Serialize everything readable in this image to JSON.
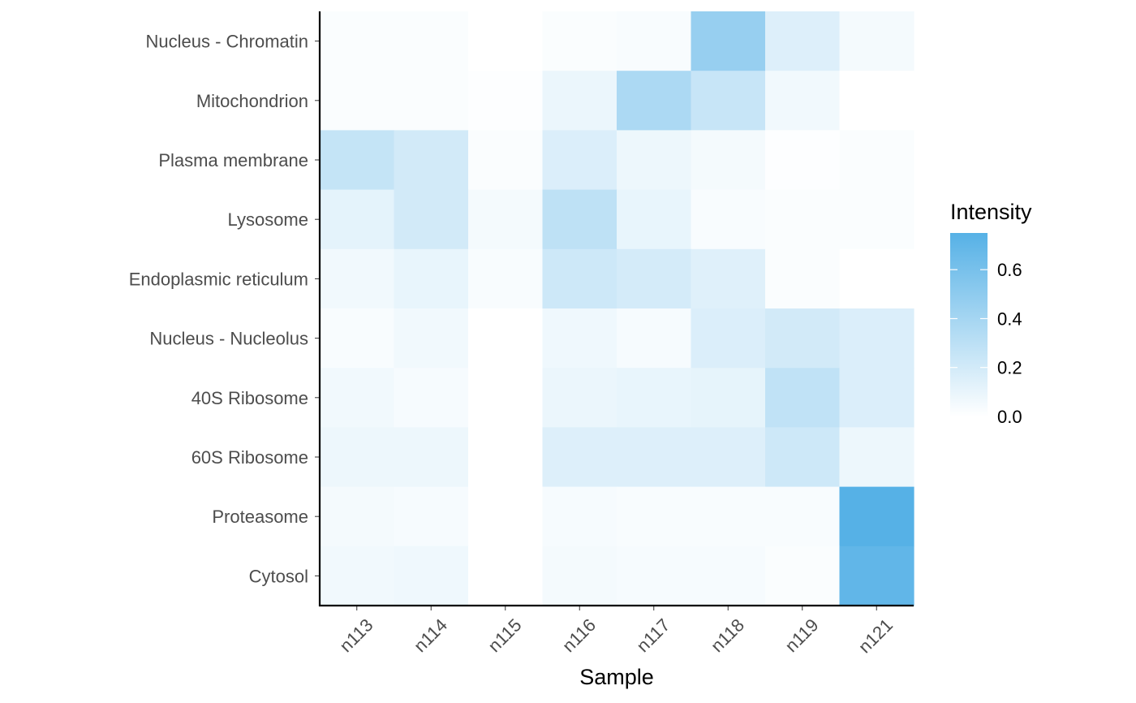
{
  "chart_data": {
    "type": "heatmap",
    "title": "",
    "xlabel": "Sample",
    "ylabel": "",
    "x_categories": [
      "n113",
      "n114",
      "n115",
      "n116",
      "n117",
      "n118",
      "n119",
      "n121"
    ],
    "y_categories": [
      "Nucleus - Chromatin",
      "Mitochondrion",
      "Plasma membrane",
      "Lysosome",
      "Endoplasmic reticulum",
      "Nucleus - Nucleolus",
      "40S Ribosome",
      "60S Ribosome",
      "Proteasome",
      "Cytosol"
    ],
    "values": [
      [
        0.02,
        0.02,
        0.0,
        0.02,
        0.03,
        0.46,
        0.15,
        0.05
      ],
      [
        0.02,
        0.02,
        0.01,
        0.09,
        0.37,
        0.25,
        0.06,
        0.0
      ],
      [
        0.26,
        0.2,
        0.02,
        0.16,
        0.08,
        0.05,
        0.01,
        0.02
      ],
      [
        0.12,
        0.2,
        0.05,
        0.29,
        0.1,
        0.03,
        0.02,
        0.02
      ],
      [
        0.06,
        0.1,
        0.03,
        0.22,
        0.19,
        0.14,
        0.02,
        0.0
      ],
      [
        0.03,
        0.06,
        0.0,
        0.07,
        0.04,
        0.16,
        0.2,
        0.16
      ],
      [
        0.06,
        0.04,
        0.0,
        0.09,
        0.1,
        0.11,
        0.28,
        0.16
      ],
      [
        0.08,
        0.08,
        0.0,
        0.15,
        0.15,
        0.15,
        0.22,
        0.08
      ],
      [
        0.05,
        0.04,
        0.0,
        0.04,
        0.03,
        0.03,
        0.03,
        0.75
      ],
      [
        0.06,
        0.07,
        0.0,
        0.05,
        0.04,
        0.04,
        0.02,
        0.7
      ]
    ],
    "color_low": "#ffffff",
    "color_high": "#56b1e6",
    "legend": {
      "title": "Intensity",
      "placement": "right",
      "range": [
        0,
        0.75
      ],
      "ticks": [
        {
          "value": 0.0,
          "label": "0.0"
        },
        {
          "value": 0.2,
          "label": "0.2"
        },
        {
          "value": 0.4,
          "label": "0.4"
        },
        {
          "value": 0.6,
          "label": "0.6"
        }
      ]
    },
    "grid": false
  }
}
